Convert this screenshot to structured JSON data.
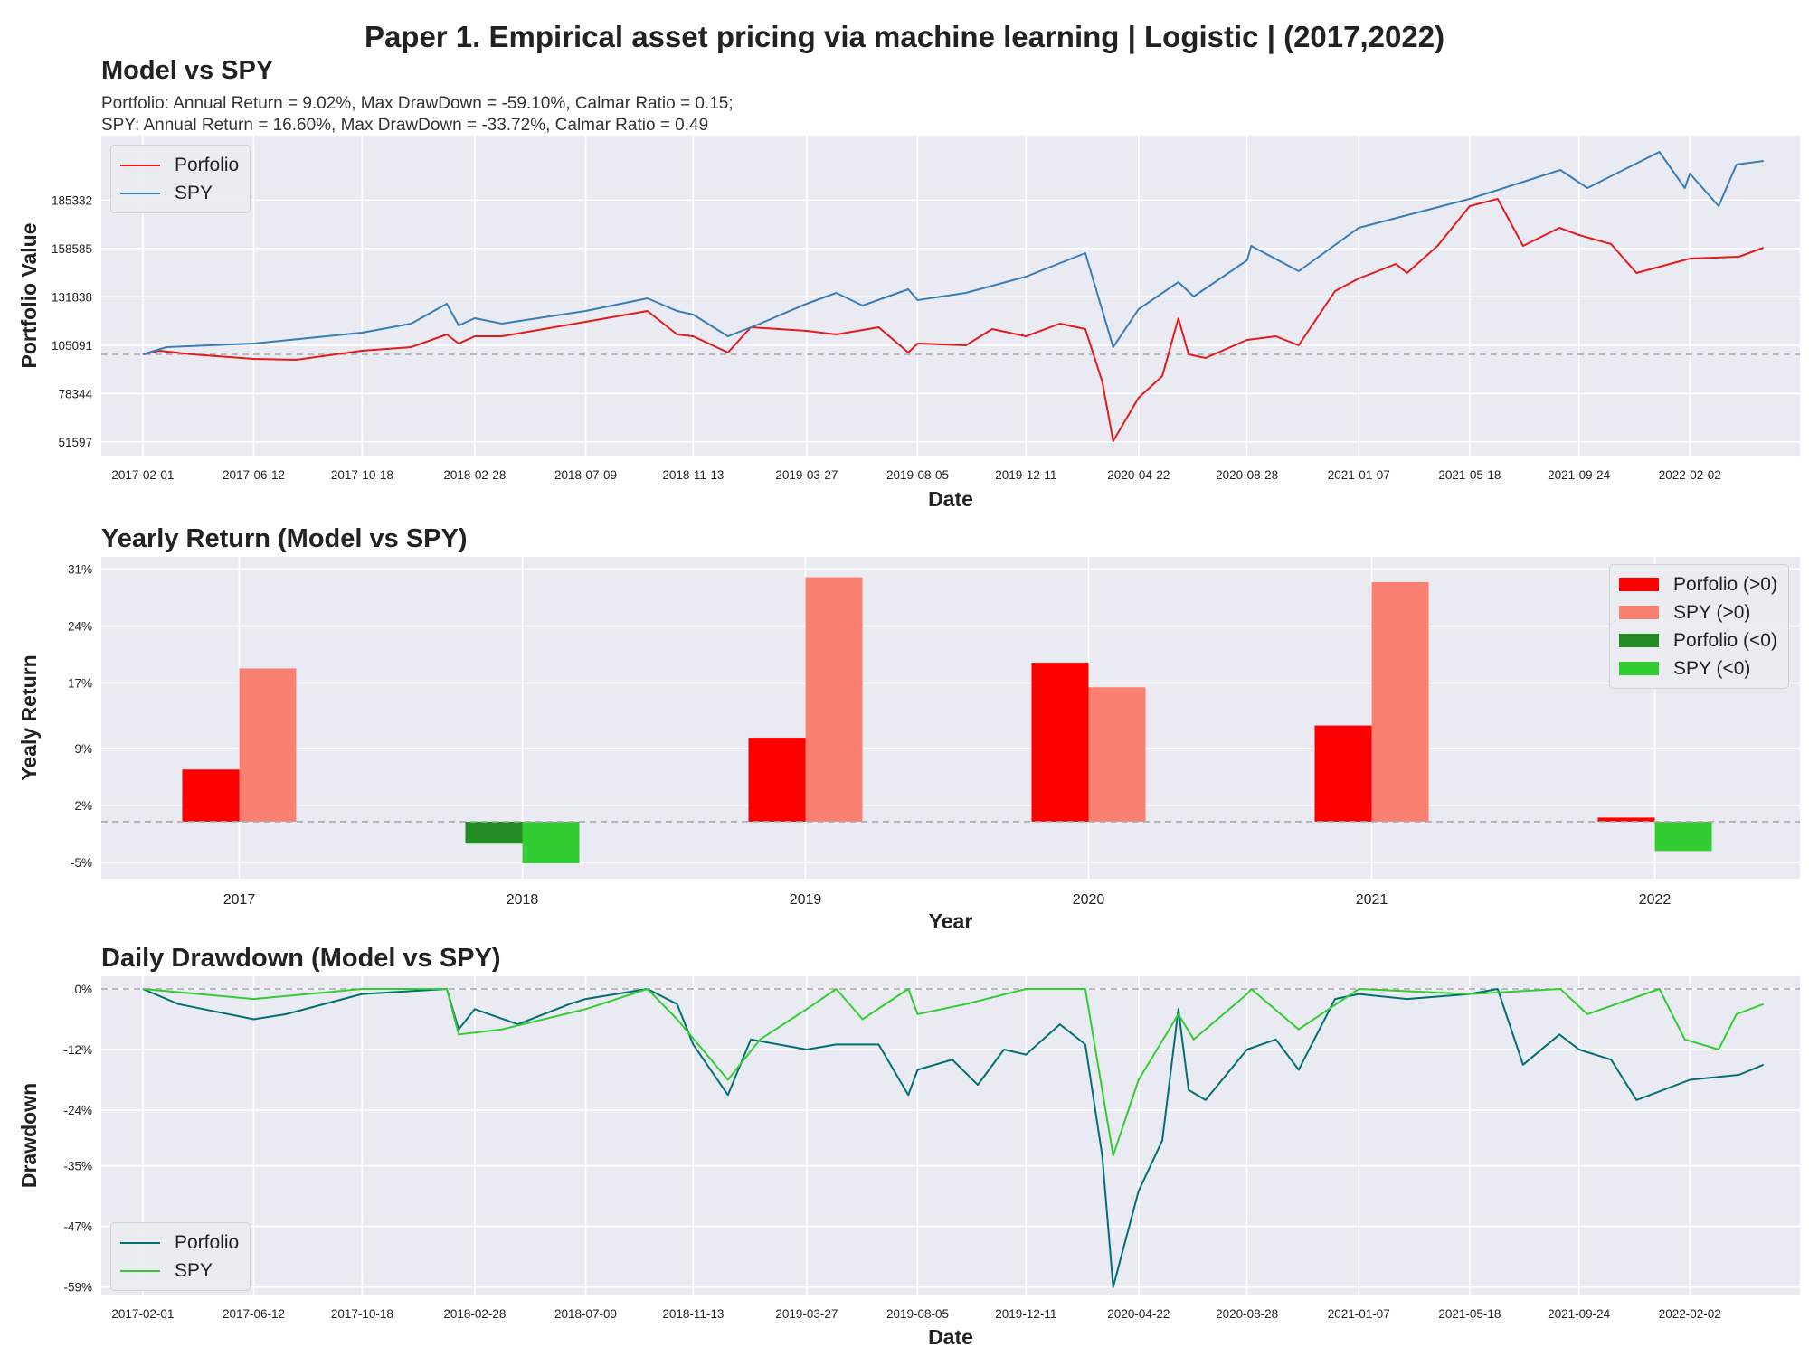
{
  "suptitle": "Paper 1. Empirical asset pricing via machine learning | Logistic | (2017,2022)",
  "colors": {
    "portfolio_line": "#e41a1c",
    "spy_line": "#377eb8",
    "portfolio_pos": "#ff0000",
    "spy_pos": "#fa8072",
    "portfolio_neg": "#228b22",
    "spy_neg": "#32cd32",
    "dd_portfolio": "#007070",
    "dd_spy": "#32cd32",
    "plot_bg": "#eaeaf2",
    "grid": "#ffffff",
    "ref_line": "#aaaaaa"
  },
  "chart_data": [
    {
      "type": "line",
      "title": "Model vs SPY",
      "subtitle_lines": [
        "Portfolio: Annual Return = 9.02%, Max DrawDown = -59.10%, Calmar Ratio = 0.15;",
        "SPY: Annual Return = 16.60%, Max DrawDown = -33.72%, Calmar Ratio = 0.49"
      ],
      "xlabel": "Date",
      "ylabel": "Portfolio Value",
      "xlim": [
        "2016-12-14",
        "2022-06-12"
      ],
      "ylim": [
        44000,
        221000
      ],
      "x_ticks": [
        "2017-02-01",
        "2017-06-12",
        "2017-10-18",
        "2018-02-28",
        "2018-07-09",
        "2018-11-13",
        "2019-03-27",
        "2019-08-05",
        "2019-12-11",
        "2020-04-22",
        "2020-08-28",
        "2021-01-07",
        "2021-05-18",
        "2021-09-24",
        "2022-02-02"
      ],
      "y_ticks": [
        51597,
        78344,
        105091,
        131838,
        158585,
        185332
      ],
      "reference_line": 100000,
      "grid": true,
      "legend_position": "top-left",
      "series": [
        {
          "name": "Porfolio",
          "points": [
            [
              "2017-02-01",
              100000
            ],
            [
              "2017-02-20",
              102000
            ],
            [
              "2017-04-01",
              100000
            ],
            [
              "2017-06-12",
              97500
            ],
            [
              "2017-08-01",
              97000
            ],
            [
              "2017-10-18",
              102000
            ],
            [
              "2017-12-15",
              104000
            ],
            [
              "2018-01-26",
              111000
            ],
            [
              "2018-02-09",
              106000
            ],
            [
              "2018-02-28",
              110000
            ],
            [
              "2018-04-01",
              110000
            ],
            [
              "2018-07-09",
              118000
            ],
            [
              "2018-09-20",
              124000
            ],
            [
              "2018-10-25",
              111000
            ],
            [
              "2018-11-13",
              110000
            ],
            [
              "2018-12-24",
              101000
            ],
            [
              "2019-01-20",
              115000
            ],
            [
              "2019-03-27",
              113000
            ],
            [
              "2019-05-01",
              111000
            ],
            [
              "2019-06-20",
              115000
            ],
            [
              "2019-07-25",
              101000
            ],
            [
              "2019-08-05",
              106000
            ],
            [
              "2019-10-01",
              105000
            ],
            [
              "2019-11-01",
              114000
            ],
            [
              "2019-12-11",
              110000
            ],
            [
              "2020-01-20",
              117000
            ],
            [
              "2020-02-19",
              114000
            ],
            [
              "2020-03-10",
              85000
            ],
            [
              "2020-03-23",
              52000
            ],
            [
              "2020-04-22",
              76000
            ],
            [
              "2020-05-20",
              88000
            ],
            [
              "2020-06-08",
              120000
            ],
            [
              "2020-06-20",
              100000
            ],
            [
              "2020-07-10",
              98000
            ],
            [
              "2020-08-28",
              108000
            ],
            [
              "2020-10-01",
              110000
            ],
            [
              "2020-10-28",
              105000
            ],
            [
              "2020-12-10",
              135000
            ],
            [
              "2021-01-07",
              142000
            ],
            [
              "2021-02-20",
              150000
            ],
            [
              "2021-03-05",
              145000
            ],
            [
              "2021-04-10",
              160000
            ],
            [
              "2021-05-18",
              182000
            ],
            [
              "2021-06-20",
              186000
            ],
            [
              "2021-07-20",
              160000
            ],
            [
              "2021-09-01",
              170000
            ],
            [
              "2021-09-24",
              166000
            ],
            [
              "2021-11-01",
              161000
            ],
            [
              "2021-12-01",
              145000
            ],
            [
              "2022-02-02",
              153000
            ],
            [
              "2022-04-01",
              154000
            ],
            [
              "2022-04-30",
              159000
            ]
          ]
        },
        {
          "name": "SPY",
          "points": [
            [
              "2017-02-01",
              100000
            ],
            [
              "2017-03-01",
              104000
            ],
            [
              "2017-06-12",
              106000
            ],
            [
              "2017-10-18",
              112000
            ],
            [
              "2017-12-15",
              117000
            ],
            [
              "2018-01-26",
              128000
            ],
            [
              "2018-02-09",
              116000
            ],
            [
              "2018-02-28",
              120000
            ],
            [
              "2018-04-01",
              117000
            ],
            [
              "2018-07-09",
              124000
            ],
            [
              "2018-09-20",
              131000
            ],
            [
              "2018-10-25",
              124000
            ],
            [
              "2018-11-13",
              122000
            ],
            [
              "2018-12-24",
              110000
            ],
            [
              "2019-01-31",
              117000
            ],
            [
              "2019-03-27",
              128000
            ],
            [
              "2019-05-01",
              134000
            ],
            [
              "2019-06-01",
              127000
            ],
            [
              "2019-07-25",
              136000
            ],
            [
              "2019-08-05",
              130000
            ],
            [
              "2019-10-01",
              134000
            ],
            [
              "2019-12-11",
              143000
            ],
            [
              "2020-02-19",
              156000
            ],
            [
              "2020-03-23",
              104000
            ],
            [
              "2020-04-22",
              125000
            ],
            [
              "2020-06-08",
              140000
            ],
            [
              "2020-06-26",
              132000
            ],
            [
              "2020-08-28",
              152000
            ],
            [
              "2020-09-02",
              160000
            ],
            [
              "2020-10-28",
              146000
            ],
            [
              "2021-01-07",
              170000
            ],
            [
              "2021-05-18",
              186000
            ],
            [
              "2021-09-02",
              202000
            ],
            [
              "2021-10-04",
              192000
            ],
            [
              "2021-12-28",
              212000
            ],
            [
              "2022-01-27",
              192000
            ],
            [
              "2022-02-02",
              200000
            ],
            [
              "2022-03-08",
              182000
            ],
            [
              "2022-03-29",
              205000
            ],
            [
              "2022-04-30",
              207000
            ]
          ]
        }
      ]
    },
    {
      "type": "bar",
      "title": "Yearly Return (Model vs SPY)",
      "xlabel": "Year",
      "ylabel": "Yealy Return",
      "categories": [
        "2017",
        "2018",
        "2019",
        "2020",
        "2021",
        "2022"
      ],
      "y_ticks": [
        -5,
        2,
        9,
        17,
        24,
        31
      ],
      "y_tick_labels": [
        "-5%",
        "2%",
        "9%",
        "17%",
        "24%",
        "31%"
      ],
      "ylim": [
        -7,
        32.5
      ],
      "reference_line": 0,
      "grid": true,
      "legend_position": "top-right",
      "legend": [
        "Porfolio (>0)",
        "SPY (>0)",
        "Porfolio (<0)",
        "SPY (<0)"
      ],
      "series": [
        {
          "name": "Porfolio",
          "values": [
            6.4,
            -2.7,
            10.3,
            19.5,
            11.8,
            0.5
          ]
        },
        {
          "name": "SPY",
          "values": [
            18.8,
            -5.1,
            30.0,
            16.5,
            29.4,
            -3.6
          ]
        }
      ]
    },
    {
      "type": "line",
      "title": "Daily Drawdown (Model vs SPY)",
      "xlabel": "Date",
      "ylabel": "Drawdown",
      "xlim": [
        "2016-12-14",
        "2022-06-12"
      ],
      "ylim": [
        -60.5,
        2.5
      ],
      "x_ticks": [
        "2017-02-01",
        "2017-06-12",
        "2017-10-18",
        "2018-02-28",
        "2018-07-09",
        "2018-11-13",
        "2019-03-27",
        "2019-08-05",
        "2019-12-11",
        "2020-04-22",
        "2020-08-28",
        "2021-01-07",
        "2021-05-18",
        "2021-09-24",
        "2022-02-02"
      ],
      "y_ticks": [
        0,
        -12,
        -24,
        -35,
        -47,
        -59
      ],
      "y_tick_labels": [
        "0%",
        "-12%",
        "-24%",
        "-35%",
        "-47%",
        "-59%"
      ],
      "reference_line": 0,
      "grid": true,
      "legend_position": "bottom-left",
      "series": [
        {
          "name": "Porfolio",
          "points": [
            [
              "2017-02-01",
              0
            ],
            [
              "2017-03-15",
              -3
            ],
            [
              "2017-06-12",
              -6
            ],
            [
              "2017-07-20",
              -5
            ],
            [
              "2017-10-18",
              -1
            ],
            [
              "2018-01-26",
              0
            ],
            [
              "2018-02-09",
              -8
            ],
            [
              "2018-02-28",
              -4
            ],
            [
              "2018-04-20",
              -7
            ],
            [
              "2018-06-20",
              -3
            ],
            [
              "2018-07-09",
              -2
            ],
            [
              "2018-09-20",
              0
            ],
            [
              "2018-10-25",
              -3
            ],
            [
              "2018-11-13",
              -11
            ],
            [
              "2018-12-24",
              -21
            ],
            [
              "2019-01-20",
              -10
            ],
            [
              "2019-03-27",
              -12
            ],
            [
              "2019-05-01",
              -11
            ],
            [
              "2019-06-20",
              -11
            ],
            [
              "2019-07-25",
              -21
            ],
            [
              "2019-08-05",
              -16
            ],
            [
              "2019-09-15",
              -14
            ],
            [
              "2019-10-15",
              -19
            ],
            [
              "2019-11-15",
              -12
            ],
            [
              "2019-12-11",
              -13
            ],
            [
              "2020-01-20",
              -7
            ],
            [
              "2020-02-19",
              -11
            ],
            [
              "2020-03-10",
              -33
            ],
            [
              "2020-03-23",
              -59
            ],
            [
              "2020-04-22",
              -40
            ],
            [
              "2020-05-20",
              -30
            ],
            [
              "2020-06-08",
              -4
            ],
            [
              "2020-06-20",
              -20
            ],
            [
              "2020-07-10",
              -22
            ],
            [
              "2020-08-28",
              -12
            ],
            [
              "2020-10-01",
              -10
            ],
            [
              "2020-10-28",
              -16
            ],
            [
              "2020-12-10",
              -2
            ],
            [
              "2021-01-07",
              -1
            ],
            [
              "2021-03-05",
              -2
            ],
            [
              "2021-05-18",
              -1
            ],
            [
              "2021-06-20",
              0
            ],
            [
              "2021-07-20",
              -15
            ],
            [
              "2021-09-01",
              -9
            ],
            [
              "2021-09-24",
              -12
            ],
            [
              "2021-11-01",
              -14
            ],
            [
              "2021-12-01",
              -22
            ],
            [
              "2022-02-02",
              -18
            ],
            [
              "2022-04-01",
              -17
            ],
            [
              "2022-04-30",
              -15
            ]
          ]
        },
        {
          "name": "SPY",
          "points": [
            [
              "2017-02-01",
              0
            ],
            [
              "2017-06-12",
              -2
            ],
            [
              "2017-10-18",
              0
            ],
            [
              "2018-01-26",
              0
            ],
            [
              "2018-02-09",
              -9
            ],
            [
              "2018-04-01",
              -8
            ],
            [
              "2018-07-09",
              -4
            ],
            [
              "2018-09-20",
              0
            ],
            [
              "2018-10-25",
              -6
            ],
            [
              "2018-12-24",
              -18
            ],
            [
              "2019-01-31",
              -10
            ],
            [
              "2019-03-27",
              -4
            ],
            [
              "2019-05-01",
              0
            ],
            [
              "2019-06-01",
              -6
            ],
            [
              "2019-07-25",
              0
            ],
            [
              "2019-08-05",
              -5
            ],
            [
              "2019-10-01",
              -3
            ],
            [
              "2019-12-11",
              0
            ],
            [
              "2020-02-19",
              0
            ],
            [
              "2020-03-23",
              -33
            ],
            [
              "2020-04-22",
              -18
            ],
            [
              "2020-06-08",
              -5
            ],
            [
              "2020-06-26",
              -10
            ],
            [
              "2020-08-28",
              -1
            ],
            [
              "2020-09-02",
              0
            ],
            [
              "2020-10-28",
              -8
            ],
            [
              "2021-01-07",
              0
            ],
            [
              "2021-05-18",
              -1
            ],
            [
              "2021-09-02",
              0
            ],
            [
              "2021-10-04",
              -5
            ],
            [
              "2021-12-28",
              0
            ],
            [
              "2022-01-27",
              -10
            ],
            [
              "2022-03-08",
              -12
            ],
            [
              "2022-03-29",
              -5
            ],
            [
              "2022-04-30",
              -3
            ]
          ]
        }
      ]
    }
  ]
}
